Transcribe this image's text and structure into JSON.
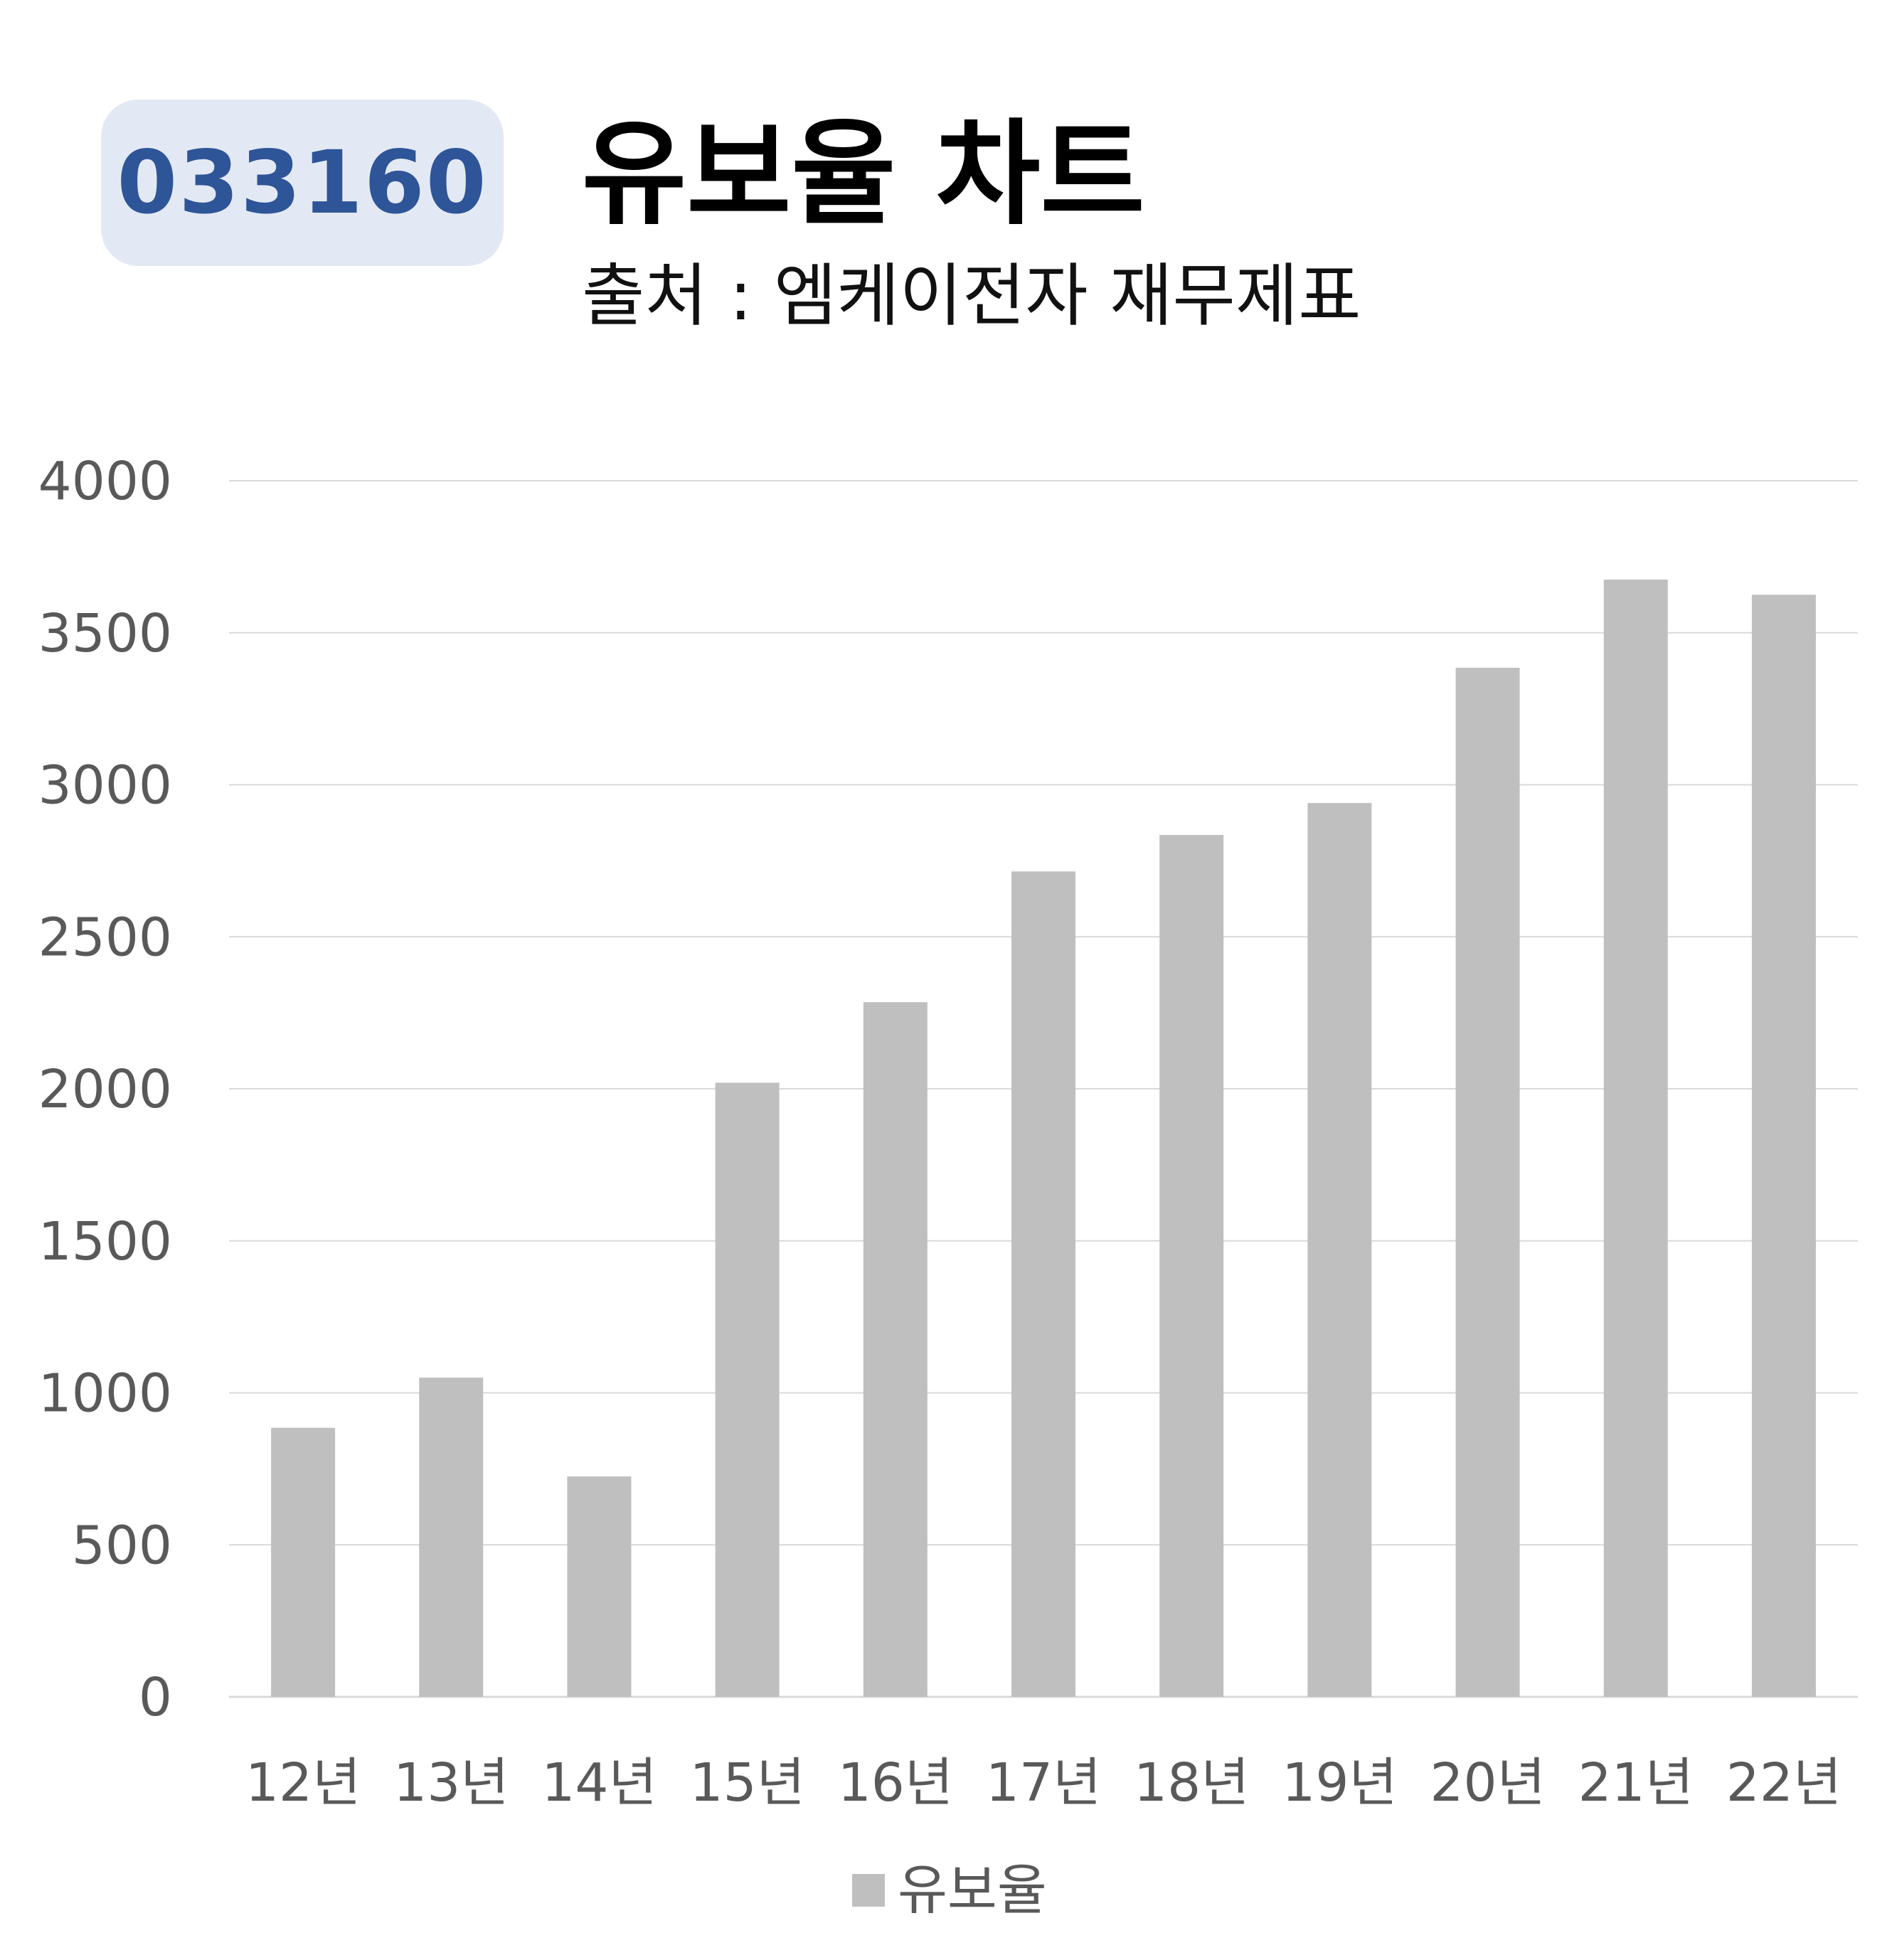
{
  "header": {
    "badge": "033160",
    "title": "유보율 차트",
    "subtitle": "출처 : 엠케이전자 재무제표"
  },
  "colors": {
    "bar": "#bfbfbf",
    "grid": "#d9d9d9",
    "axis_text": "#595959",
    "badge_bg": "#e3e9f4",
    "badge_text": "#2e5597"
  },
  "chart_data": {
    "type": "bar",
    "categories": [
      "12년",
      "13년",
      "14년",
      "15년",
      "16년",
      "17년",
      "18년",
      "19년",
      "20년",
      "21년",
      "22년"
    ],
    "series": [
      {
        "name": "유보율",
        "values": [
          885,
          1050,
          725,
          2020,
          2285,
          2715,
          2835,
          2940,
          3385,
          3675,
          3625
        ]
      }
    ],
    "yticks": [
      0,
      500,
      1000,
      1500,
      2000,
      2500,
      3000,
      3500,
      4000
    ],
    "ylim": [
      0,
      4000
    ],
    "grid": true,
    "legend": "bottom"
  }
}
